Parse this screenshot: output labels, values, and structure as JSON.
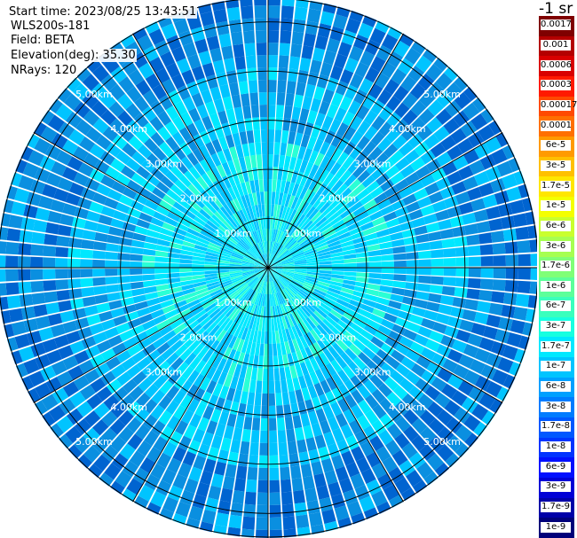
{
  "info": {
    "start_time": "Start time: 2023/08/25 13:43:51",
    "instrument": "WLS200s-181",
    "field": "Field: BETA",
    "elevation": "Elevation(deg): 35.30",
    "nrays": "NRays: 120"
  },
  "units_label": "-1 sr",
  "colorbar": {
    "segments": [
      {
        "label": "0.0017",
        "color": "#7f0000"
      },
      {
        "label": "0.001",
        "color": "#b40000"
      },
      {
        "label": "0.0006",
        "color": "#d90000"
      },
      {
        "label": "0.0003",
        "color": "#ff1a00"
      },
      {
        "label": "0.00017",
        "color": "#ff4a00"
      },
      {
        "label": "0.0001",
        "color": "#ff7000"
      },
      {
        "label": "6e-5",
        "color": "#ff9a00"
      },
      {
        "label": "3e-5",
        "color": "#ffc000"
      },
      {
        "label": "1.7e-5",
        "color": "#ffe600"
      },
      {
        "label": "1e-5",
        "color": "#f4ff00"
      },
      {
        "label": "6e-6",
        "color": "#c9ff2e"
      },
      {
        "label": "3e-6",
        "color": "#a6ff51"
      },
      {
        "label": "1.7e-6",
        "color": "#80ff77"
      },
      {
        "label": "1e-6",
        "color": "#5dff9a"
      },
      {
        "label": "6e-7",
        "color": "#3affbd"
      },
      {
        "label": "3e-7",
        "color": "#17ffe0"
      },
      {
        "label": "1.7e-7",
        "color": "#00e8ff"
      },
      {
        "label": "1e-7",
        "color": "#00c4ff"
      },
      {
        "label": "6e-8",
        "color": "#00a0ff"
      },
      {
        "label": "3e-8",
        "color": "#007cff"
      },
      {
        "label": "1.7e-8",
        "color": "#0058ff"
      },
      {
        "label": "1e-8",
        "color": "#0034ff"
      },
      {
        "label": "6e-9",
        "color": "#0010ff"
      },
      {
        "label": "3e-9",
        "color": "#0000d6"
      },
      {
        "label": "1.7e-9",
        "color": "#0000a8"
      },
      {
        "label": "1e-9",
        "color": "#00007a"
      }
    ]
  },
  "ppi": {
    "nrays": 120,
    "max_range_km": 5.5,
    "spokes_deg": [
      0,
      30,
      60,
      90,
      120,
      150,
      180,
      210,
      240,
      270,
      300,
      330
    ],
    "rings": [
      {
        "km": 1,
        "label": "1.00km"
      },
      {
        "km": 2,
        "label": "2.00km"
      },
      {
        "km": 3,
        "label": "3.00km"
      },
      {
        "km": 4,
        "label": "4.00km"
      },
      {
        "km": 5,
        "label": "5.00km"
      }
    ],
    "label_angles_deg": [
      45,
      135,
      225,
      315
    ],
    "colors": {
      "inner": "#00e8ff",
      "mid": "#00c4ff",
      "outer": "#0a8fe0",
      "edge": "#0064d0",
      "bright": "#2affd5",
      "background": "#ffffff"
    }
  }
}
